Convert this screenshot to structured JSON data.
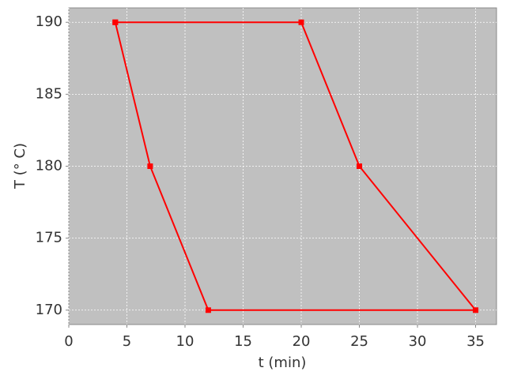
{
  "chart_data": {
    "type": "line",
    "xlabel": "t (min)",
    "ylabel": "T (° C)",
    "x": [
      4,
      20,
      25,
      35,
      12,
      7,
      4
    ],
    "values": [
      190,
      190,
      180,
      170,
      170,
      180,
      190
    ],
    "color": "#ff0000",
    "plot_background": "#c0c0c0",
    "xlim": [
      0,
      36.8
    ],
    "xticks": [
      0,
      5,
      10,
      15,
      20,
      25,
      30,
      35
    ],
    "ylim": [
      169,
      191
    ],
    "yticks": [
      170,
      175,
      180,
      185,
      190
    ],
    "grid": true
  }
}
